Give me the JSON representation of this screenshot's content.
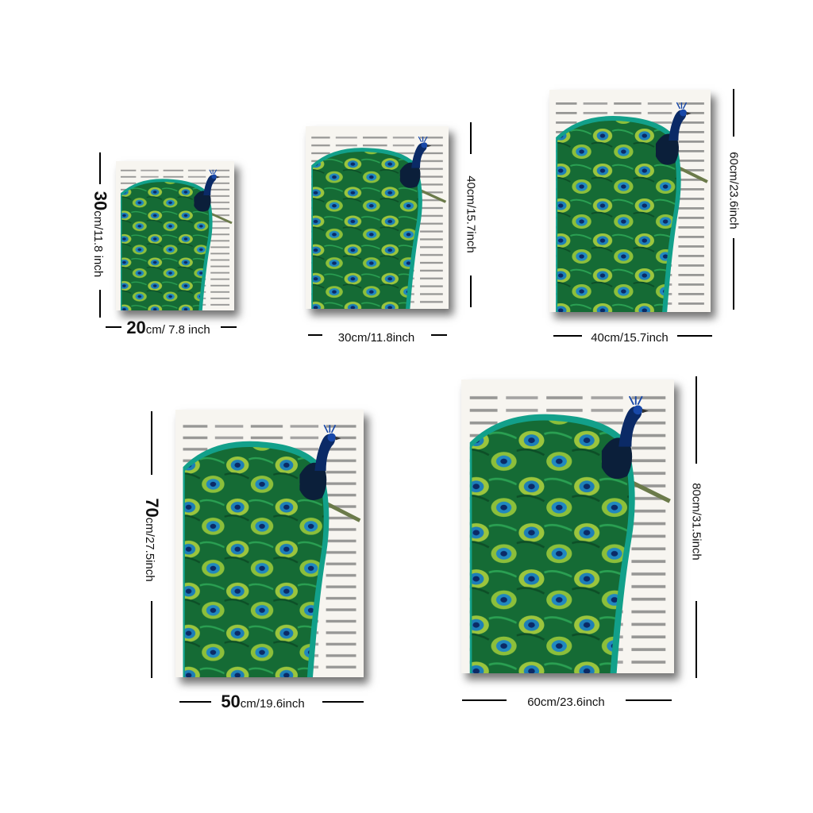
{
  "colors": {
    "paper": "#f7f5f0",
    "text_print": "#6d6d6d",
    "feather_dark": "#0f5a2e",
    "feather_mid": "#1e8f43",
    "feather_light": "#9bc53d",
    "eye_blue": "#1d7fb8",
    "peacock_body": "#0b2a66"
  },
  "sizes": [
    {
      "height_num": "30",
      "height_rest": "cm/11.8 inch",
      "width_num": "20",
      "width_rest": "cm/ 7.8 inch"
    },
    {
      "height_num": "",
      "height_rest": "40cm/15.7inch",
      "width_num": "",
      "width_rest": "30cm/11.8inch"
    },
    {
      "height_num": "",
      "height_rest": "60cm/23.6inch",
      "width_num": "",
      "width_rest": "40cm/15.7inch"
    },
    {
      "height_num": "70",
      "height_rest": "cm/27.5inch",
      "width_num": "50",
      "width_rest": "cm/19.6inch"
    },
    {
      "height_num": "",
      "height_rest": "80cm/31.5inch",
      "width_num": "",
      "width_rest": "60cm/23.6inch"
    }
  ],
  "image_semantic": "peacock-on-dictionary-page-print"
}
